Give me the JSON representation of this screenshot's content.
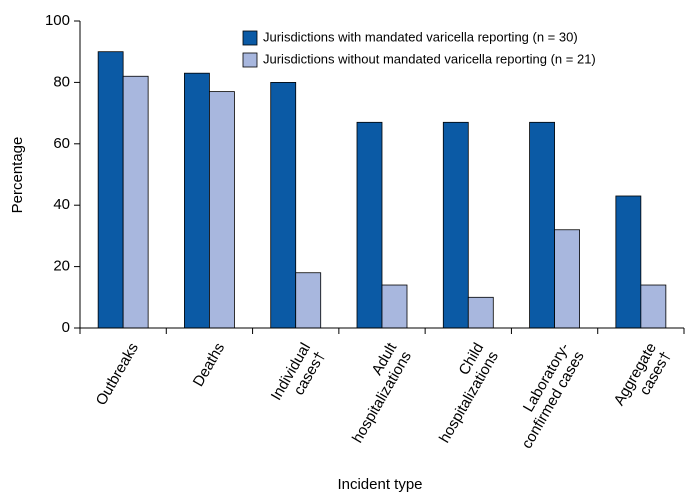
{
  "chart_data": {
    "type": "bar",
    "x_label": "Incident type",
    "y_label": "Percentage",
    "categories": [
      "Outbreaks",
      "Deaths",
      "Individual\ncases†",
      "Adult\nhospitalizations",
      "Child\nhospitalizations",
      "Laboratory-\nconfirmed cases",
      "Aggregate\ncases†"
    ],
    "series": [
      {
        "name": "Jurisdictions with mandated varicella reporting (n = 30)",
        "color": "#0b5aa5",
        "values": [
          90,
          83,
          80,
          67,
          67,
          67,
          43
        ]
      },
      {
        "name": "Jurisdictions without mandated varicella reporting (n = 21)",
        "color": "#a8b7de",
        "values": [
          82,
          77,
          18,
          14,
          10,
          32,
          14
        ]
      }
    ],
    "ylim": [
      0,
      100
    ],
    "yticks": [
      0,
      20,
      40,
      60,
      80,
      100
    ],
    "legend": "top-right"
  }
}
